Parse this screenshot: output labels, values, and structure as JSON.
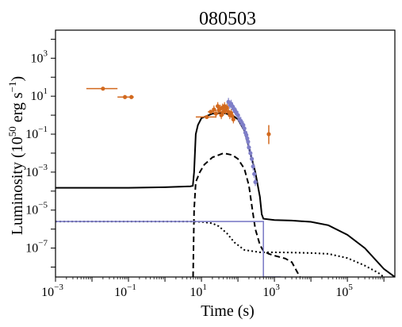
{
  "chart_data": {
    "type": "line",
    "title": "080503",
    "xlabel": "Time (s)",
    "ylabel": "Luminosity (10^50 erg s^-1)",
    "ylabel_parts": {
      "main": "Luminosity (10",
      "exp1": "50",
      "mid": " erg s",
      "exp2": "−1",
      "end": ")"
    },
    "x_scale": "log",
    "y_scale": "log",
    "xlim": [
      0.001,
      2000000
    ],
    "ylim": [
      3e-09,
      30000
    ],
    "x_ticks": [
      {
        "value": 0.001,
        "base": "10",
        "exp": "−3"
      },
      {
        "value": 0.1,
        "base": "10",
        "exp": "−1"
      },
      {
        "value": 10,
        "base": "10",
        "exp": "1"
      },
      {
        "value": 1000,
        "base": "10",
        "exp": "3"
      },
      {
        "value": 100000,
        "base": "10",
        "exp": "5"
      }
    ],
    "y_ticks": [
      {
        "value": 1000,
        "base": "10",
        "exp": "3"
      },
      {
        "value": 10,
        "base": "10",
        "exp": "1"
      },
      {
        "value": 0.1,
        "base": "10",
        "exp": "−1"
      },
      {
        "value": 0.001,
        "base": "10",
        "exp": "−3"
      },
      {
        "value": 1e-05,
        "base": "10",
        "exp": "−5"
      },
      {
        "value": 1e-07,
        "base": "10",
        "exp": "−7"
      }
    ],
    "grid": false,
    "series": [
      {
        "style": "solid",
        "color": "#000000",
        "x": [
          0.001,
          0.1,
          1,
          5,
          5.8,
          6.3,
          7,
          8,
          10,
          20,
          40,
          70,
          100,
          150,
          200,
          300,
          400,
          450,
          500,
          1000,
          3000,
          10000,
          30000,
          100000,
          300000,
          1000000,
          2000000
        ],
        "y": [
          0.00015,
          0.00015,
          0.00016,
          0.00018,
          0.00019,
          0.001,
          0.1,
          0.3,
          0.7,
          1.2,
          1.3,
          1.0,
          0.6,
          0.15,
          0.02,
          0.001,
          5e-05,
          6e-06,
          3.5e-06,
          3e-06,
          2.8e-06,
          2.4e-06,
          1.6e-06,
          5e-07,
          1e-07,
          8e-09,
          3e-09
        ]
      },
      {
        "style": "dashed",
        "color": "#000000",
        "x": [
          5.9,
          6.3,
          7,
          9,
          12,
          20,
          40,
          70,
          100,
          150,
          200,
          250,
          300,
          400,
          500,
          700,
          1000,
          2000,
          3000,
          5000
        ],
        "y": [
          3e-09,
          1e-05,
          0.0003,
          0.001,
          0.0025,
          0.006,
          0.01,
          0.008,
          0.005,
          0.0015,
          0.0002,
          1e-05,
          1e-06,
          1.5e-07,
          7e-08,
          5e-08,
          4e-08,
          2.8e-08,
          1.8e-08,
          3e-09
        ]
      },
      {
        "style": "dotted",
        "color": "#000000",
        "x": [
          0.001,
          1,
          5,
          10,
          20,
          30,
          50,
          80,
          150,
          400,
          1000,
          3000,
          10000,
          30000,
          100000,
          300000,
          700000,
          1000000
        ],
        "y": [
          2.5e-06,
          2.5e-06,
          2.5e-06,
          2.4e-06,
          2e-06,
          1.4e-06,
          6e-07,
          2e-07,
          8e-08,
          6e-08,
          6e-08,
          5.8e-08,
          5.5e-08,
          5e-08,
          3e-08,
          1.2e-08,
          5e-09,
          3e-09
        ]
      },
      {
        "style": "step",
        "color": "#7f7fc8",
        "x": [
          0.001,
          500,
          500,
          1500
        ],
        "y": [
          2.5e-06,
          2.5e-06,
          3e-09,
          3e-09
        ]
      }
    ],
    "data_points": [
      {
        "color": "#d2691e",
        "points": [
          {
            "x": 0.02,
            "y": 25,
            "xerr": [
              0.007,
              0.05
            ]
          },
          {
            "x": 0.08,
            "y": 9,
            "xerr": [
              0.05,
              0.1
            ]
          },
          {
            "x": 0.12,
            "y": 9,
            "xerr": [
              0.1,
              0.14
            ]
          },
          {
            "x": 14,
            "y": 0.8,
            "xerr": [
              7,
              25
            ]
          },
          {
            "x": 18,
            "y": 1.5,
            "xerr": [
              15,
              22
            ]
          },
          {
            "x": 22,
            "y": 2.0
          },
          {
            "x": 25,
            "y": 1.2
          },
          {
            "x": 28,
            "y": 3.0
          },
          {
            "x": 30,
            "y": 1.8
          },
          {
            "x": 33,
            "y": 2.2
          },
          {
            "x": 35,
            "y": 1.0
          },
          {
            "x": 38,
            "y": 2.5
          },
          {
            "x": 40,
            "y": 1.5
          },
          {
            "x": 43,
            "y": 3.0
          },
          {
            "x": 46,
            "y": 1.8
          },
          {
            "x": 50,
            "y": 2.5
          },
          {
            "x": 55,
            "y": 1.5
          },
          {
            "x": 60,
            "y": 1.0
          },
          {
            "x": 65,
            "y": 1.3
          },
          {
            "x": 70,
            "y": 0.9
          },
          {
            "x": 75,
            "y": 0.6
          },
          {
            "x": 700,
            "y": 0.1,
            "yerr": [
              0.03,
              0.3
            ]
          }
        ]
      },
      {
        "color": "#7f7fc8",
        "points": [
          {
            "x": 55,
            "y": 5
          },
          {
            "x": 60,
            "y": 3.5
          },
          {
            "x": 65,
            "y": 4
          },
          {
            "x": 70,
            "y": 3
          },
          {
            "x": 75,
            "y": 2.2
          },
          {
            "x": 80,
            "y": 2
          },
          {
            "x": 85,
            "y": 1.6
          },
          {
            "x": 90,
            "y": 1.4
          },
          {
            "x": 100,
            "y": 1.0
          },
          {
            "x": 110,
            "y": 0.6
          },
          {
            "x": 120,
            "y": 0.5
          },
          {
            "x": 130,
            "y": 0.35
          },
          {
            "x": 140,
            "y": 0.3
          },
          {
            "x": 150,
            "y": 0.2
          },
          {
            "x": 160,
            "y": 0.12
          },
          {
            "x": 170,
            "y": 0.09
          },
          {
            "x": 180,
            "y": 0.06
          },
          {
            "x": 190,
            "y": 0.04
          },
          {
            "x": 200,
            "y": 0.02
          },
          {
            "x": 220,
            "y": 0.01
          },
          {
            "x": 240,
            "y": 0.005
          },
          {
            "x": 260,
            "y": 0.002
          },
          {
            "x": 280,
            "y": 0.0008
          },
          {
            "x": 300,
            "y": 0.0003
          }
        ]
      }
    ]
  }
}
